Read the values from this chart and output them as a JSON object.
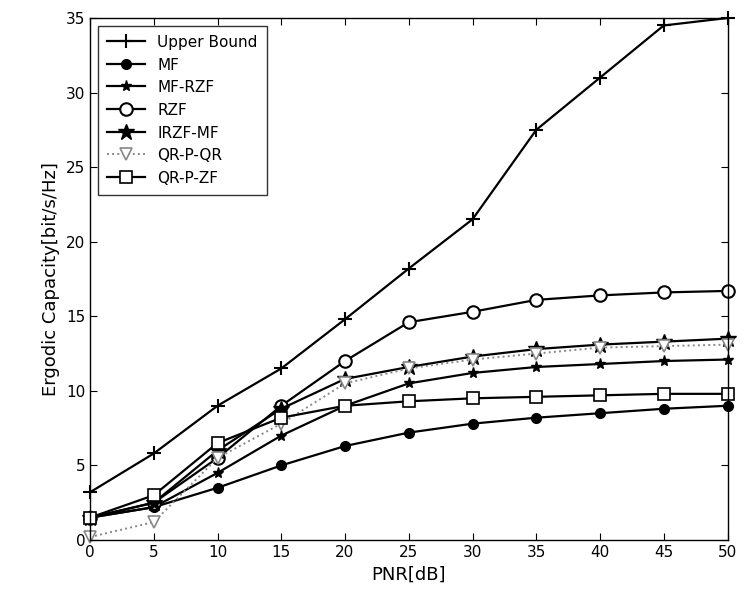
{
  "x": [
    0,
    5,
    10,
    15,
    20,
    25,
    30,
    35,
    40,
    45,
    50
  ],
  "series": {
    "Upper Bound": {
      "y": [
        3.2,
        5.8,
        9.0,
        11.5,
        14.8,
        18.2,
        21.5,
        27.5,
        31.0,
        34.5,
        35.0
      ],
      "marker": "+",
      "color": "#000000",
      "linestyle": "-",
      "markersize": 10,
      "linewidth": 1.6,
      "markerfacecolor": "#000000",
      "markeredgewidth": 1.5
    },
    "MF": {
      "y": [
        1.5,
        2.2,
        3.5,
        5.0,
        6.3,
        7.2,
        7.8,
        8.2,
        8.5,
        8.8,
        9.0
      ],
      "marker": "o",
      "color": "#000000",
      "linestyle": "-",
      "markersize": 7,
      "linewidth": 1.6,
      "markerfacecolor": "#000000",
      "markeredgewidth": 1.0
    },
    "MF-RZF": {
      "y": [
        1.5,
        2.2,
        4.5,
        7.0,
        9.0,
        10.5,
        11.2,
        11.6,
        11.8,
        12.0,
        12.1
      ],
      "marker": "*",
      "color": "#000000",
      "linestyle": "-",
      "markersize": 8,
      "linewidth": 1.6,
      "markerfacecolor": "#000000",
      "markeredgewidth": 1.0
    },
    "RZF": {
      "y": [
        1.5,
        2.5,
        5.5,
        9.0,
        12.0,
        14.6,
        15.3,
        16.1,
        16.4,
        16.6,
        16.7
      ],
      "marker": "o",
      "color": "#000000",
      "linestyle": "-",
      "markersize": 9,
      "linewidth": 1.6,
      "markerfacecolor": "white",
      "markeredgewidth": 1.5
    },
    "IRZF-MF": {
      "y": [
        1.5,
        2.5,
        6.0,
        8.8,
        10.8,
        11.6,
        12.3,
        12.8,
        13.1,
        13.3,
        13.5
      ],
      "marker": "*",
      "color": "#000000",
      "linestyle": "-",
      "markersize": 12,
      "linewidth": 1.6,
      "markerfacecolor": "#000000",
      "markeredgewidth": 1.0
    },
    "QR-P-QR": {
      "y": [
        0.2,
        1.2,
        5.5,
        7.8,
        10.5,
        11.5,
        12.1,
        12.5,
        12.9,
        13.0,
        13.1
      ],
      "marker": "v",
      "color": "#888888",
      "linestyle": ":",
      "markersize": 9,
      "linewidth": 1.4,
      "markerfacecolor": "white",
      "markeredgewidth": 1.2
    },
    "QR-P-ZF": {
      "y": [
        1.5,
        3.0,
        6.5,
        8.2,
        9.0,
        9.3,
        9.5,
        9.6,
        9.7,
        9.8,
        9.8
      ],
      "marker": "s",
      "color": "#000000",
      "linestyle": "-",
      "markersize": 8,
      "linewidth": 1.6,
      "markerfacecolor": "white",
      "markeredgewidth": 1.2
    }
  },
  "xlabel": "PNR[dB]",
  "ylabel": "Ergodic Capacity[bit/s/Hz]",
  "xlim": [
    0,
    50
  ],
  "ylim": [
    0,
    35
  ],
  "xticks": [
    0,
    5,
    10,
    15,
    20,
    25,
    30,
    35,
    40,
    45,
    50
  ],
  "yticks": [
    0,
    5,
    10,
    15,
    20,
    25,
    30,
    35
  ],
  "legend_order": [
    "Upper Bound",
    "MF",
    "MF-RZF",
    "RZF",
    "IRZF-MF",
    "QR-P-QR",
    "QR-P-ZF"
  ],
  "background_color": "#ffffff",
  "figwidth": 7.5,
  "figheight": 6.0
}
